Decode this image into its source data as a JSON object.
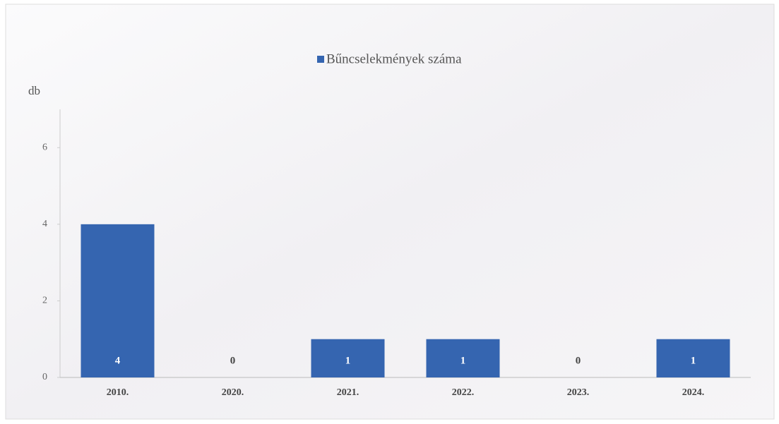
{
  "chart_data": {
    "type": "bar",
    "y_label": "db",
    "categories": [
      "2010.",
      "2020.",
      "2021.",
      "2022.",
      "2023.",
      "2024."
    ],
    "series": [
      {
        "name": "Bűncselekmények száma",
        "color": "#3565b0",
        "values": [
          4,
          0,
          1,
          1,
          0,
          1
        ]
      }
    ],
    "ylim": [
      0,
      7
    ],
    "yticks": [
      0,
      2,
      4,
      6
    ],
    "legend": "top"
  }
}
